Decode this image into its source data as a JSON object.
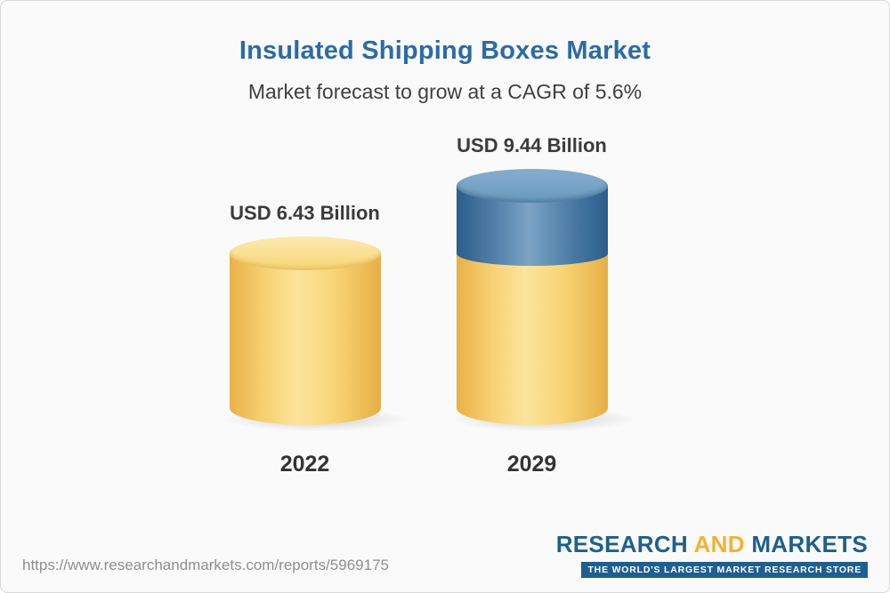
{
  "header": {
    "title": "Insulated Shipping Boxes Market",
    "subtitle": "Market forecast to grow at a CAGR of 5.6%"
  },
  "chart_data": {
    "type": "bar",
    "bar_style": "cylinder",
    "categories": [
      "2022",
      "2029"
    ],
    "values": [
      6.43,
      9.44
    ],
    "value_labels": [
      "USD 6.43 Billion",
      "USD 9.44 Billion"
    ],
    "unit": "USD Billion",
    "title": "Insulated Shipping Boxes Market",
    "subtitle": "Market forecast to grow at a CAGR of 5.6%",
    "cagr_percent": 5.6,
    "legend_position": "none",
    "grid": false,
    "colors": {
      "base": "#f3cc66",
      "growth": "#30648f"
    },
    "notes": "2029 bar shows the 2022 baseline in yellow with the growth portion above it in blue"
  },
  "footer": {
    "url": "https://www.researchandmarkets.com/reports/5969175",
    "logo": {
      "part_research": "RESEARCH",
      "part_and": "AND",
      "part_markets": "MARKETS",
      "tagline": "THE WORLD'S LARGEST MARKET RESEARCH STORE"
    }
  }
}
